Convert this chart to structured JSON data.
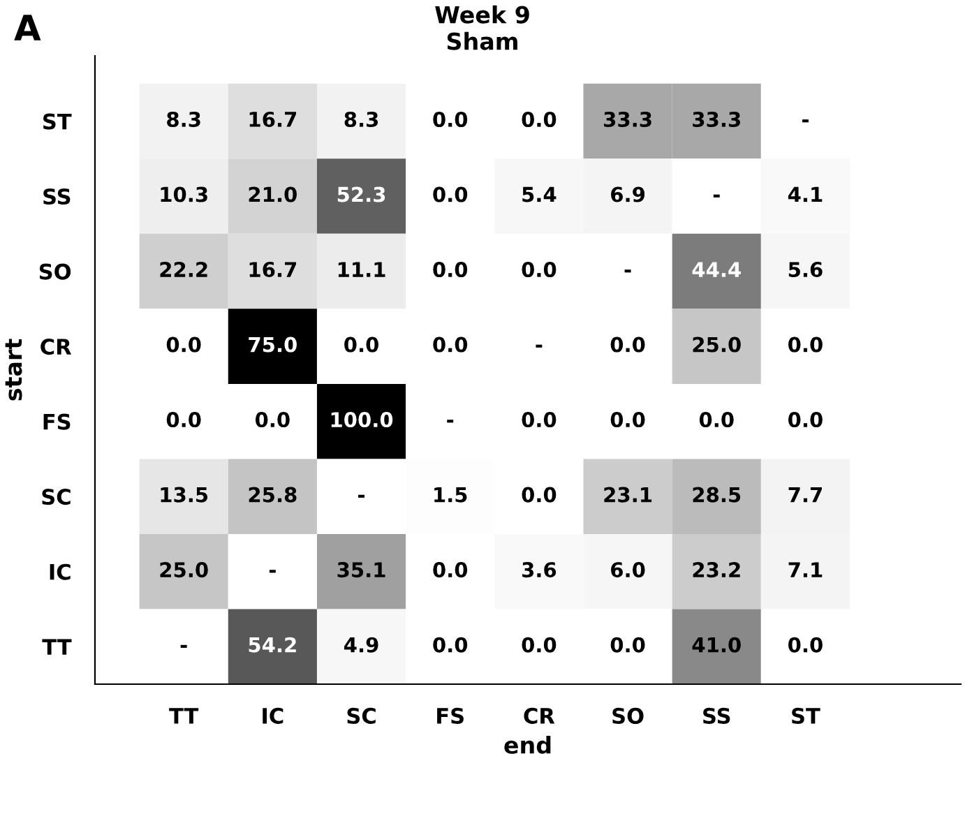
{
  "chart_data": {
    "type": "heatmap",
    "title": "Week 9",
    "subtitle": "Sham",
    "xlabel": "end",
    "ylabel": "start",
    "annotations": [
      "A"
    ],
    "categories": [
      "TT",
      "IC",
      "SC",
      "FS",
      "CR",
      "SO",
      "SS",
      "ST"
    ],
    "y_categories": [
      "ST",
      "SS",
      "SO",
      "CR",
      "FS",
      "SC",
      "IC",
      "TT"
    ],
    "cells": [
      [
        8.3,
        16.7,
        8.3,
        0.0,
        0.0,
        33.3,
        33.3,
        null
      ],
      [
        10.3,
        21.0,
        52.3,
        0.0,
        5.4,
        6.9,
        null,
        4.1
      ],
      [
        22.2,
        16.7,
        11.1,
        0.0,
        0.0,
        null,
        44.4,
        5.6
      ],
      [
        0.0,
        75.0,
        0.0,
        0.0,
        null,
        0.0,
        25.0,
        0.0
      ],
      [
        0.0,
        0.0,
        100.0,
        null,
        0.0,
        0.0,
        0.0,
        0.0
      ],
      [
        13.5,
        25.8,
        null,
        1.5,
        0.0,
        23.1,
        28.5,
        7.7
      ],
      [
        25.0,
        null,
        35.1,
        0.0,
        3.6,
        6.0,
        23.2,
        7.1
      ],
      [
        null,
        54.2,
        4.9,
        0.0,
        0.0,
        0.0,
        41.0,
        0.0
      ]
    ],
    "cell_labels": [
      [
        "8.3",
        "16.7",
        "8.3",
        "0.0",
        "0.0",
        "33.3",
        "33.3",
        "-"
      ],
      [
        "10.3",
        "21.0",
        "52.3",
        "0.0",
        "5.4",
        "6.9",
        "-",
        "4.1"
      ],
      [
        "22.2",
        "16.7",
        "11.1",
        "0.0",
        "0.0",
        "-",
        "44.4",
        "5.6"
      ],
      [
        "0.0",
        "75.0",
        "0.0",
        "0.0",
        "-",
        "0.0",
        "25.0",
        "0.0"
      ],
      [
        "0.0",
        "0.0",
        "100.0",
        "-",
        "0.0",
        "0.0",
        "0.0",
        "0.0"
      ],
      [
        "13.5",
        "25.8",
        "-",
        "1.5",
        "0.0",
        "23.1",
        "28.5",
        "7.7"
      ],
      [
        "25.0",
        "-",
        "35.1",
        "0.0",
        "3.6",
        "6.0",
        "23.2",
        "7.1"
      ],
      [
        "-",
        "54.2",
        "4.9",
        "0.0",
        "0.0",
        "0.0",
        "41.0",
        "0.0"
      ]
    ]
  }
}
